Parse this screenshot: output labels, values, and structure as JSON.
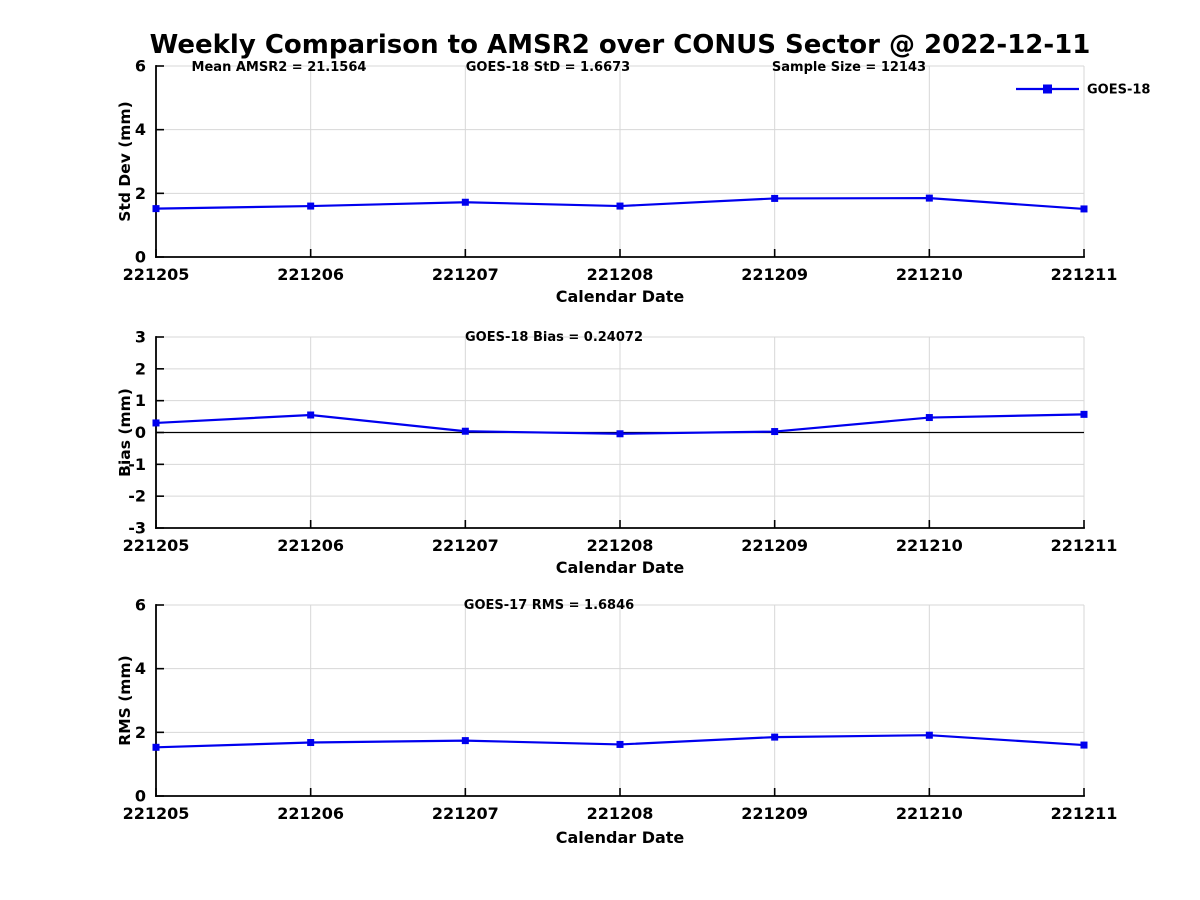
{
  "figure": {
    "title": "Weekly Comparison to AMSR2 over CONUS Sector @ 2022-12-11",
    "colors": {
      "line": "#0000ee",
      "grid": "#d7d7d7",
      "axis": "#000000",
      "zero_line": "#000000",
      "text": "#000000",
      "background": "#ffffff"
    }
  },
  "chart_data": [
    {
      "type": "line",
      "subplot": "std-dev",
      "annotations": [
        {
          "text": "Mean AMSR2 = 21.1564"
        },
        {
          "text": "GOES-18 StD = 1.6673"
        },
        {
          "text": "Sample Size = 12143"
        }
      ],
      "xlabel": "Calendar Date",
      "ylabel": "Std Dev (mm)",
      "ylim": [
        0,
        6
      ],
      "yticks": [
        0,
        2,
        4,
        6
      ],
      "grid": true,
      "zero_line": false,
      "legend_position": "top-right-outside",
      "categories": [
        "221205",
        "221206",
        "221207",
        "221208",
        "221209",
        "221210",
        "221211"
      ],
      "series": [
        {
          "name": "GOES-18",
          "values": [
            1.52,
            1.6,
            1.72,
            1.6,
            1.84,
            1.85,
            1.51
          ]
        }
      ]
    },
    {
      "type": "line",
      "subplot": "bias",
      "annotations": [
        {
          "text": "GOES-18 Bias  = 0.24072"
        }
      ],
      "xlabel": "Calendar Date",
      "ylabel": "Bias (mm)",
      "ylim": [
        -3,
        3
      ],
      "yticks": [
        -3,
        -2,
        -1,
        0,
        1,
        2,
        3
      ],
      "grid": true,
      "zero_line": true,
      "categories": [
        "221205",
        "221206",
        "221207",
        "221208",
        "221209",
        "221210",
        "221211"
      ],
      "series": [
        {
          "name": "GOES-18",
          "values": [
            0.3,
            0.55,
            0.04,
            -0.04,
            0.03,
            0.47,
            0.57
          ]
        }
      ]
    },
    {
      "type": "line",
      "subplot": "rms",
      "annotations": [
        {
          "text": "GOES-17 RMS = 1.6846"
        }
      ],
      "xlabel": "Calendar Date",
      "ylabel": "RMS (mm)",
      "ylim": [
        0,
        6
      ],
      "yticks": [
        0,
        2,
        4,
        6
      ],
      "grid": true,
      "zero_line": false,
      "categories": [
        "221205",
        "221206",
        "221207",
        "221208",
        "221209",
        "221210",
        "221211"
      ],
      "series": [
        {
          "name": "GOES-18",
          "values": [
            1.53,
            1.68,
            1.74,
            1.62,
            1.85,
            1.91,
            1.6
          ]
        }
      ]
    }
  ]
}
